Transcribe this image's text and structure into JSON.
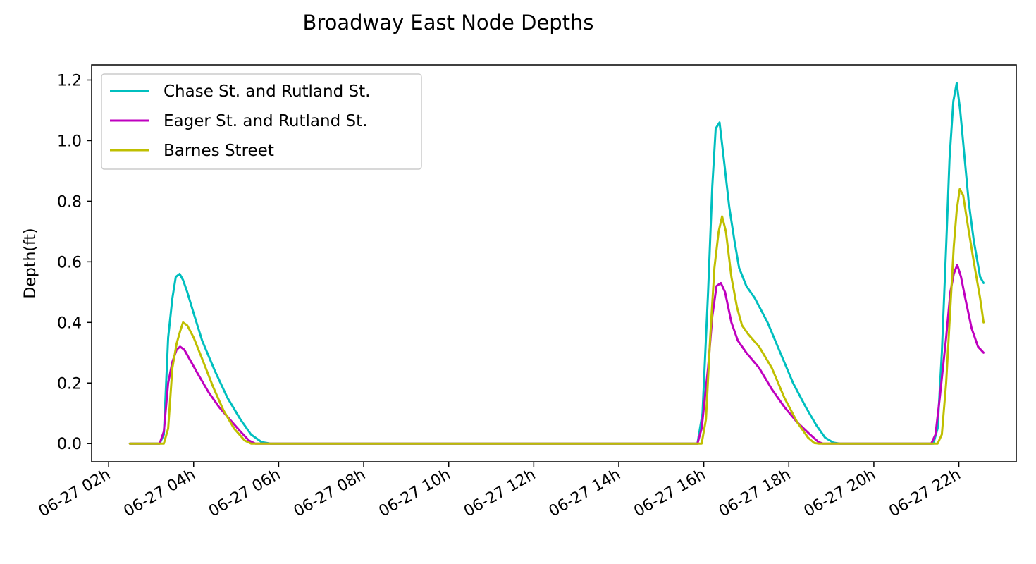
{
  "chart_data": {
    "type": "line",
    "title": "Broadway East Node Depths",
    "xlabel": "",
    "ylabel": "Depth(ft)",
    "x_unit": "hours on 06-27",
    "xlim": [
      1.6,
      23.35
    ],
    "ylim": [
      -0.06,
      1.25
    ],
    "x_ticks": [
      2,
      4,
      6,
      8,
      10,
      12,
      14,
      16,
      18,
      20,
      22
    ],
    "x_tick_labels": [
      "06-27 02h",
      "06-27 04h",
      "06-27 06h",
      "06-27 08h",
      "06-27 10h",
      "06-27 12h",
      "06-27 14h",
      "06-27 16h",
      "06-27 18h",
      "06-27 20h",
      "06-27 22h"
    ],
    "y_ticks": [
      0.0,
      0.2,
      0.4,
      0.6,
      0.8,
      1.0,
      1.2
    ],
    "y_tick_labels": [
      "0.0",
      "0.2",
      "0.4",
      "0.6",
      "0.8",
      "1.0",
      "1.2"
    ],
    "grid": false,
    "legend_position": "top-left",
    "series": [
      {
        "name": "Chase St. and Rutland St.",
        "color": "#00bfbf",
        "points": [
          [
            2.5,
            0
          ],
          [
            3.2,
            0
          ],
          [
            3.3,
            0.03
          ],
          [
            3.4,
            0.35
          ],
          [
            3.5,
            0.48
          ],
          [
            3.58,
            0.55
          ],
          [
            3.67,
            0.56
          ],
          [
            3.75,
            0.54
          ],
          [
            3.85,
            0.5
          ],
          [
            4.0,
            0.43
          ],
          [
            4.2,
            0.34
          ],
          [
            4.5,
            0.24
          ],
          [
            4.8,
            0.15
          ],
          [
            5.1,
            0.08
          ],
          [
            5.35,
            0.03
          ],
          [
            5.6,
            0.005
          ],
          [
            5.8,
            0
          ],
          [
            15.85,
            0
          ],
          [
            15.97,
            0.1
          ],
          [
            16.1,
            0.5
          ],
          [
            16.2,
            0.85
          ],
          [
            16.28,
            1.04
          ],
          [
            16.37,
            1.06
          ],
          [
            16.47,
            0.94
          ],
          [
            16.6,
            0.78
          ],
          [
            16.72,
            0.67
          ],
          [
            16.83,
            0.58
          ],
          [
            17.0,
            0.52
          ],
          [
            17.2,
            0.48
          ],
          [
            17.5,
            0.4
          ],
          [
            17.8,
            0.3
          ],
          [
            18.1,
            0.2
          ],
          [
            18.4,
            0.12
          ],
          [
            18.65,
            0.06
          ],
          [
            18.85,
            0.02
          ],
          [
            19.05,
            0.003
          ],
          [
            19.2,
            0
          ],
          [
            21.4,
            0
          ],
          [
            21.5,
            0.05
          ],
          [
            21.6,
            0.3
          ],
          [
            21.7,
            0.65
          ],
          [
            21.78,
            0.94
          ],
          [
            21.87,
            1.13
          ],
          [
            21.95,
            1.19
          ],
          [
            22.03,
            1.1
          ],
          [
            22.13,
            0.95
          ],
          [
            22.23,
            0.8
          ],
          [
            22.35,
            0.67
          ],
          [
            22.5,
            0.55
          ],
          [
            22.58,
            0.53
          ]
        ]
      },
      {
        "name": "Eager St. and Rutland St.",
        "color": "#bf00bf",
        "points": [
          [
            2.5,
            0
          ],
          [
            3.2,
            0
          ],
          [
            3.3,
            0.04
          ],
          [
            3.4,
            0.2
          ],
          [
            3.5,
            0.27
          ],
          [
            3.6,
            0.31
          ],
          [
            3.68,
            0.32
          ],
          [
            3.78,
            0.31
          ],
          [
            3.9,
            0.28
          ],
          [
            4.1,
            0.23
          ],
          [
            4.35,
            0.17
          ],
          [
            4.6,
            0.12
          ],
          [
            4.85,
            0.08
          ],
          [
            5.1,
            0.04
          ],
          [
            5.3,
            0.01
          ],
          [
            5.45,
            0
          ],
          [
            15.85,
            0
          ],
          [
            15.95,
            0.05
          ],
          [
            16.1,
            0.25
          ],
          [
            16.2,
            0.42
          ],
          [
            16.3,
            0.52
          ],
          [
            16.4,
            0.53
          ],
          [
            16.5,
            0.5
          ],
          [
            16.65,
            0.4
          ],
          [
            16.8,
            0.34
          ],
          [
            17.0,
            0.3
          ],
          [
            17.3,
            0.25
          ],
          [
            17.6,
            0.18
          ],
          [
            17.9,
            0.12
          ],
          [
            18.2,
            0.07
          ],
          [
            18.5,
            0.03
          ],
          [
            18.7,
            0.005
          ],
          [
            18.8,
            0
          ],
          [
            21.35,
            0
          ],
          [
            21.45,
            0.03
          ],
          [
            21.55,
            0.15
          ],
          [
            21.7,
            0.35
          ],
          [
            21.8,
            0.5
          ],
          [
            21.88,
            0.56
          ],
          [
            21.96,
            0.59
          ],
          [
            22.05,
            0.55
          ],
          [
            22.15,
            0.48
          ],
          [
            22.3,
            0.38
          ],
          [
            22.45,
            0.32
          ],
          [
            22.58,
            0.3
          ]
        ]
      },
      {
        "name": "Barnes Street",
        "color": "#bfbf00",
        "points": [
          [
            2.5,
            0
          ],
          [
            3.3,
            0
          ],
          [
            3.4,
            0.05
          ],
          [
            3.5,
            0.25
          ],
          [
            3.6,
            0.33
          ],
          [
            3.68,
            0.37
          ],
          [
            3.75,
            0.4
          ],
          [
            3.85,
            0.39
          ],
          [
            4.0,
            0.35
          ],
          [
            4.2,
            0.28
          ],
          [
            4.45,
            0.19
          ],
          [
            4.7,
            0.11
          ],
          [
            4.95,
            0.05
          ],
          [
            5.2,
            0.01
          ],
          [
            5.35,
            0
          ],
          [
            15.95,
            0
          ],
          [
            16.05,
            0.08
          ],
          [
            16.15,
            0.35
          ],
          [
            16.25,
            0.58
          ],
          [
            16.35,
            0.7
          ],
          [
            16.43,
            0.75
          ],
          [
            16.52,
            0.7
          ],
          [
            16.65,
            0.55
          ],
          [
            16.78,
            0.45
          ],
          [
            16.9,
            0.39
          ],
          [
            17.05,
            0.36
          ],
          [
            17.3,
            0.32
          ],
          [
            17.6,
            0.25
          ],
          [
            17.9,
            0.15
          ],
          [
            18.2,
            0.07
          ],
          [
            18.45,
            0.02
          ],
          [
            18.6,
            0.002
          ],
          [
            18.7,
            0
          ],
          [
            21.5,
            0
          ],
          [
            21.6,
            0.03
          ],
          [
            21.7,
            0.2
          ],
          [
            21.8,
            0.45
          ],
          [
            21.88,
            0.65
          ],
          [
            21.95,
            0.77
          ],
          [
            22.02,
            0.84
          ],
          [
            22.1,
            0.82
          ],
          [
            22.2,
            0.73
          ],
          [
            22.35,
            0.6
          ],
          [
            22.5,
            0.48
          ],
          [
            22.58,
            0.4
          ]
        ]
      }
    ]
  }
}
